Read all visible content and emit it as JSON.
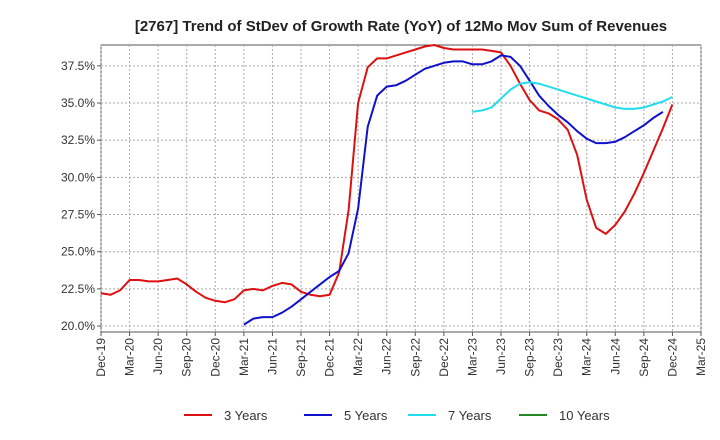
{
  "chart_data": {
    "type": "line",
    "title": "[2767]  Trend of StDev of Growth Rate (YoY) of 12Mo Mov Sum of Revenues",
    "xlabel": "",
    "ylabel": "",
    "ylim": [
      19.6,
      38.9
    ],
    "yticks": [
      20.0,
      22.5,
      25.0,
      27.5,
      30.0,
      32.5,
      35.0,
      37.5
    ],
    "ytick_labels": [
      "20.0%",
      "22.5%",
      "25.0%",
      "27.5%",
      "30.0%",
      "32.5%",
      "35.0%",
      "37.5%"
    ],
    "x_months": [
      "Dec-19",
      "Jan-20",
      "Feb-20",
      "Mar-20",
      "Apr-20",
      "May-20",
      "Jun-20",
      "Jul-20",
      "Aug-20",
      "Sep-20",
      "Oct-20",
      "Nov-20",
      "Dec-20",
      "Jan-21",
      "Feb-21",
      "Mar-21",
      "Apr-21",
      "May-21",
      "Jun-21",
      "Jul-21",
      "Aug-21",
      "Sep-21",
      "Oct-21",
      "Nov-21",
      "Dec-21",
      "Jan-22",
      "Feb-22",
      "Mar-22",
      "Apr-22",
      "May-22",
      "Jun-22",
      "Jul-22",
      "Aug-22",
      "Sep-22",
      "Oct-22",
      "Nov-22",
      "Dec-22",
      "Jan-23",
      "Feb-23",
      "Mar-23",
      "Apr-23",
      "May-23",
      "Jun-23",
      "Jul-23",
      "Aug-23",
      "Sep-23",
      "Oct-23",
      "Nov-23",
      "Dec-23",
      "Jan-24",
      "Feb-24",
      "Mar-24",
      "Apr-24",
      "May-24",
      "Jun-24",
      "Jul-24",
      "Aug-24",
      "Sep-24",
      "Oct-24",
      "Nov-24",
      "Dec-24",
      "Jan-25",
      "Feb-25",
      "Mar-25"
    ],
    "xtick_labels": [
      "Dec-19",
      "Mar-20",
      "Jun-20",
      "Sep-20",
      "Dec-20",
      "Mar-21",
      "Jun-21",
      "Sep-21",
      "Dec-21",
      "Mar-22",
      "Jun-22",
      "Sep-22",
      "Dec-22",
      "Mar-23",
      "Jun-23",
      "Sep-23",
      "Dec-23",
      "Mar-24",
      "Jun-24",
      "Sep-24",
      "Dec-24",
      "Mar-25"
    ],
    "grid": true,
    "legend_position": "bottom",
    "series": [
      {
        "name": "3 Years",
        "color": "#dd1111",
        "start_index": 0,
        "values": [
          22.2,
          22.1,
          22.4,
          23.1,
          23.1,
          23.0,
          23.0,
          23.1,
          23.2,
          22.8,
          22.3,
          21.9,
          21.7,
          21.6,
          21.8,
          22.4,
          22.5,
          22.4,
          22.7,
          22.9,
          22.8,
          22.3,
          22.1,
          22.0,
          22.1,
          23.6,
          27.8,
          35.0,
          37.4,
          38.0,
          38.0,
          38.2,
          38.4,
          38.6,
          38.8,
          38.9,
          38.7,
          38.6,
          38.6,
          38.6,
          38.6,
          38.5,
          38.4,
          37.5,
          36.3,
          35.2,
          34.5,
          34.3,
          33.9,
          33.2,
          31.5,
          28.5,
          26.6,
          26.2,
          26.8,
          27.7,
          28.9,
          30.3,
          31.8,
          33.3,
          34.9
        ]
      },
      {
        "name": "5 Years",
        "color": "#1111cc",
        "start_index": 15,
        "values": [
          20.1,
          20.5,
          20.6,
          20.6,
          20.9,
          21.3,
          21.8,
          22.3,
          22.8,
          23.3,
          23.7,
          24.9,
          27.9,
          33.4,
          35.5,
          36.1,
          36.2,
          36.5,
          36.9,
          37.3,
          37.5,
          37.7,
          37.8,
          37.8,
          37.6,
          37.6,
          37.8,
          38.2,
          38.1,
          37.5,
          36.5,
          35.5,
          34.8,
          34.2,
          33.7,
          33.1,
          32.6,
          32.3,
          32.3,
          32.4,
          32.7,
          33.1,
          33.5,
          34.0,
          34.4
        ]
      },
      {
        "name": "7 Years",
        "color": "#22ddee",
        "start_index": 39,
        "values": [
          34.4,
          34.5,
          34.7,
          35.3,
          35.9,
          36.3,
          36.4,
          36.3,
          36.1,
          35.9,
          35.7,
          35.5,
          35.3,
          35.1,
          34.9,
          34.7,
          34.6,
          34.6,
          34.7,
          34.9,
          35.1,
          35.4
        ]
      },
      {
        "name": "10 Years",
        "color": "#228822",
        "start_index": 0,
        "values": []
      }
    ]
  }
}
